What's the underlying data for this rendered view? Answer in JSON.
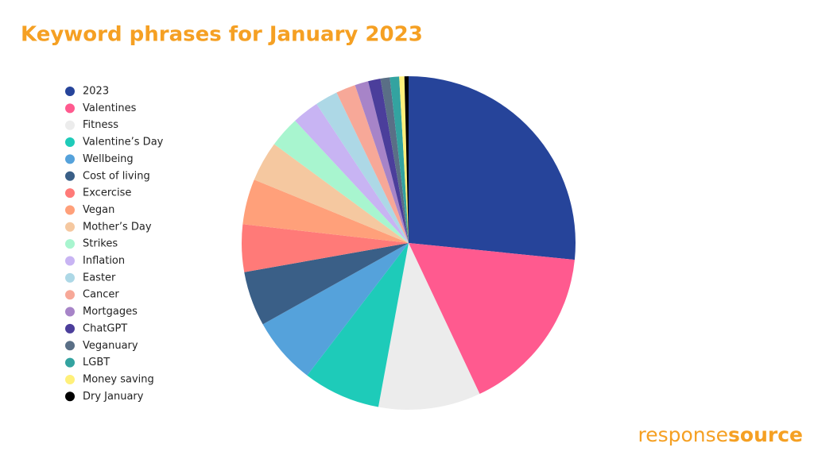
{
  "chart_data": {
    "type": "pie",
    "title": "Keyword phrases for January 2023",
    "categories": [
      "2023",
      "Valentines",
      "Fitness",
      "Valentine’s Day",
      "Wellbeing",
      "Cost of living",
      "Excercise",
      "Vegan",
      "Mother’s Day",
      "Strikes",
      "Inflation",
      "Easter",
      "Cancer",
      "Mortgages",
      "ChatGPT",
      "Veganuary",
      "LGBT",
      "Money saving",
      "Dry January"
    ],
    "values": [
      26.6,
      16.4,
      9.9,
      7.5,
      6.5,
      5.3,
      4.6,
      4.4,
      3.9,
      3.0,
      2.6,
      2.2,
      1.9,
      1.3,
      1.2,
      0.9,
      0.9,
      0.5,
      0.4
    ],
    "colors": [
      "#26449a",
      "#ff5a8f",
      "#ececec",
      "#1ecbb9",
      "#55a2db",
      "#3a5f87",
      "#ff7a78",
      "#ffa07a",
      "#f5c8a0",
      "#a8f5cf",
      "#c8b4f3",
      "#add8e6",
      "#f7a898",
      "#a784c8",
      "#4b3e9b",
      "#5a6f86",
      "#33a3a0",
      "#fff07a",
      "#000000"
    ],
    "legend": "left"
  },
  "logo": {
    "part1": "response",
    "part2": "source"
  }
}
